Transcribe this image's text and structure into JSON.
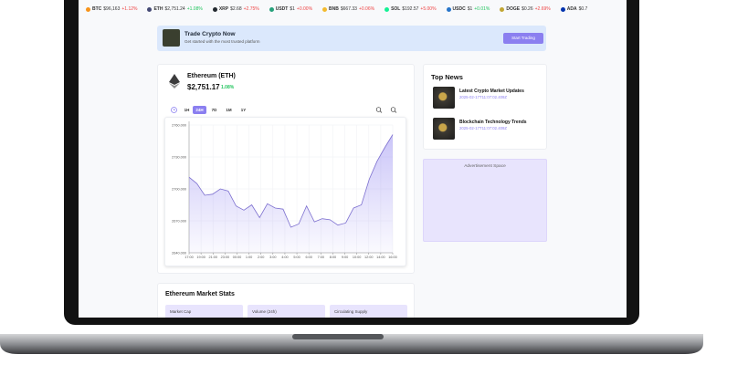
{
  "ticker": [
    {
      "symbol": "BTC",
      "price": "$96,163",
      "change": "+1.12%",
      "color": "#ef4444",
      "icon": "#f7931a"
    },
    {
      "symbol": "ETH",
      "price": "$2,751.24",
      "change": "+1.08%",
      "color": "#22c55e",
      "icon": "#454a75"
    },
    {
      "symbol": "XRP",
      "price": "$2.68",
      "change": "+2.75%",
      "color": "#ef4444",
      "icon": "#23292f"
    },
    {
      "symbol": "USDT",
      "price": "$1",
      "change": "+0.00%",
      "color": "#ef4444",
      "icon": "#26a17b"
    },
    {
      "symbol": "BNB",
      "price": "$667.33",
      "change": "+0.06%",
      "color": "#ef4444",
      "icon": "#f3ba2f"
    },
    {
      "symbol": "SOL",
      "price": "$192.57",
      "change": "+5.00%",
      "color": "#ef4444",
      "icon": "#14f195"
    },
    {
      "symbol": "USDC",
      "price": "$1",
      "change": "+0.01%",
      "color": "#22c55e",
      "icon": "#2775ca"
    },
    {
      "symbol": "DOGE",
      "price": "$0.26",
      "change": "+2.69%",
      "color": "#ef4444",
      "icon": "#c2a633"
    },
    {
      "symbol": "ADA",
      "price": "$0.7",
      "change": "",
      "color": "#ef4444",
      "icon": "#0033ad"
    }
  ],
  "banner": {
    "title": "Trade Crypto Now",
    "subtitle": "Get started with the most trusted platform",
    "button": "Start Trading"
  },
  "coin": {
    "name": "Ethereum (ETH)",
    "price": "$2,751.17",
    "change": "1.08%"
  },
  "timeframes": [
    "1H",
    "24H",
    "7D",
    "1M",
    "1Y"
  ],
  "active_timeframe": "24H",
  "chart": {
    "type": "area",
    "color": "#7c6fcf",
    "values": [
      2711,
      2705,
      2694,
      2695,
      2700,
      2698,
      2684,
      2680,
      2685,
      2673,
      2686,
      2682,
      2681,
      2664,
      2667,
      2684,
      2669,
      2672,
      2671,
      2666,
      2668,
      2682,
      2685,
      2709,
      2726,
      2739,
      2751
    ],
    "ylim": [
      2640,
      2760
    ],
    "yticks": [
      {
        "value": 2640,
        "label": "2640.000"
      },
      {
        "value": 2670,
        "label": "2670.000"
      },
      {
        "value": 2700,
        "label": "2700.000"
      },
      {
        "value": 2730,
        "label": "2730.000"
      },
      {
        "value": 2760,
        "label": "2760.000"
      }
    ],
    "xticks": [
      "17:00",
      "19:00",
      "21:00",
      "23:00",
      "00:00",
      "1:00",
      "2:00",
      "3:00",
      "4:00",
      "5:00",
      "6:00",
      "7:00",
      "8:00",
      "9:00",
      "10:00",
      "12:00",
      "14:00",
      "16:00"
    ],
    "grid": true
  },
  "news": {
    "title": "Top News",
    "items": [
      {
        "headline": "Latest Crypto Market Updates",
        "date": "2025-02-17T11:07:02.409Z"
      },
      {
        "headline": "Blockchain Technology Trends",
        "date": "2025-02-17T11:07:02.409Z"
      }
    ]
  },
  "ad": "Advertisement Space",
  "stats": {
    "title": "Ethereum Market Stats",
    "labels": [
      "Market Cap",
      "Volume (24h)",
      "Circulating Supply"
    ]
  }
}
